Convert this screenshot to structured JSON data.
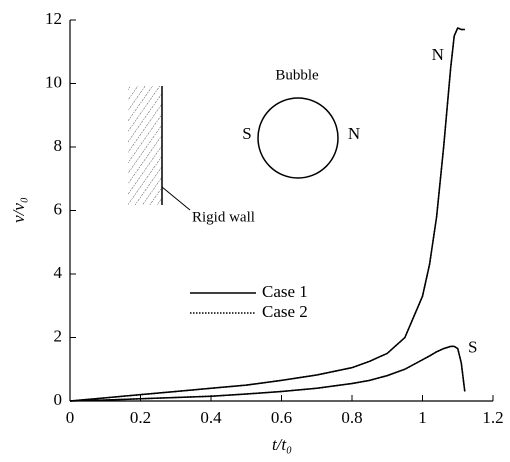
{
  "chart_data": {
    "type": "line",
    "xlabel": "t/t₀",
    "ylabel": "v/v₀",
    "x": [
      0,
      0.1,
      0.2,
      0.3,
      0.4,
      0.5,
      0.6,
      0.7,
      0.8,
      0.85,
      0.9,
      0.95,
      1.0,
      1.02,
      1.04,
      1.06,
      1.08,
      1.09,
      1.1,
      1.11,
      1.12
    ],
    "series": [
      {
        "name": "Case 1",
        "color": "#000000",
        "dash": "solid",
        "curves": [
          {
            "label": "N",
            "values": [
              0,
              0.1,
              0.2,
              0.3,
              0.4,
              0.5,
              0.65,
              0.82,
              1.05,
              1.25,
              1.5,
              2.0,
              3.3,
              4.3,
              5.8,
              8.0,
              10.5,
              11.5,
              11.75,
              11.7,
              11.7
            ]
          },
          {
            "label": "S",
            "values": [
              0,
              0.03,
              0.07,
              0.11,
              0.15,
              0.22,
              0.3,
              0.4,
              0.55,
              0.65,
              0.8,
              1.0,
              1.3,
              1.42,
              1.55,
              1.65,
              1.72,
              1.72,
              1.65,
              1.2,
              0.3
            ]
          }
        ]
      },
      {
        "name": "Case 2",
        "color": "#000000",
        "dash": "dotted",
        "curves": [
          {
            "values": [
              0,
              0.1,
              0.2,
              0.3,
              0.4,
              0.5,
              0.65,
              0.82,
              1.05,
              1.25,
              1.5,
              2.0,
              3.3,
              4.3,
              5.8,
              8.0,
              10.5,
              11.5,
              11.75,
              11.7,
              11.7
            ]
          },
          {
            "values": [
              0,
              0.03,
              0.07,
              0.11,
              0.15,
              0.22,
              0.3,
              0.4,
              0.55,
              0.65,
              0.8,
              1.0,
              1.3,
              1.42,
              1.55,
              1.65,
              1.72,
              1.72,
              1.65,
              1.2,
              0.3
            ]
          }
        ]
      }
    ],
    "xlim": [
      0,
      1.2
    ],
    "xticks": [
      0,
      0.2,
      0.4,
      0.6,
      0.8,
      1,
      1.2
    ],
    "ylim": [
      0,
      12
    ],
    "yticks": [
      0,
      2,
      4,
      6,
      8,
      10,
      12
    ],
    "grid": false,
    "inset": {
      "bubble": "Bubble",
      "left": "S",
      "right": "N",
      "wall": "Rigid wall"
    }
  }
}
